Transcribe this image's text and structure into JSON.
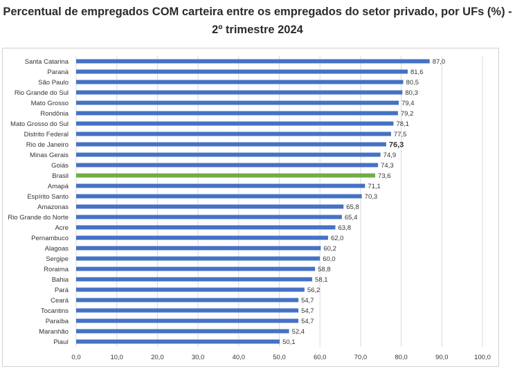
{
  "chart_data": {
    "type": "bar",
    "orientation": "horizontal",
    "title": "Percentual de empregados COM carteira entre os empregados do setor privado, por UFs (%) - 2º trimestre 2024",
    "categories": [
      "Santa Catarina",
      "Paraná",
      "São Paulo",
      "Rio Grande do Sul",
      "Mato Grosso",
      "Rondônia",
      "Mato Grosso do Sul",
      "Distrito Federal",
      "Rio de Janeiro",
      "Minas Gerais",
      "Goiás",
      "Brasil",
      "Amapá",
      "Espírito Santo",
      "Amazonas",
      "Rio Grande do Norte",
      "Acre",
      "Pernambuco",
      "Alagoas",
      "Sergipe",
      "Roraima",
      "Bahia",
      "Pará",
      "Ceará",
      "Tocantins",
      "Paraíba",
      "Maranhão",
      "Piauí"
    ],
    "values": [
      87.0,
      81.6,
      80.5,
      80.3,
      79.4,
      79.2,
      78.1,
      77.5,
      76.3,
      74.9,
      74.3,
      73.6,
      71.1,
      70.3,
      65.8,
      65.4,
      63.8,
      62.0,
      60.2,
      60.0,
      58.8,
      58.1,
      56.2,
      54.7,
      54.7,
      54.7,
      52.4,
      50.1
    ],
    "value_labels": [
      "87,0",
      "81,6",
      "80,5",
      "80,3",
      "79,4",
      "79,2",
      "78,1",
      "77,5",
      "76,3",
      "74,9",
      "74,3",
      "73,6",
      "71,1",
      "70,3",
      "65,8",
      "65,4",
      "63,8",
      "62,0",
      "60,2",
      "60,0",
      "58,8",
      "58,1",
      "56,2",
      "54,7",
      "54,7",
      "54,7",
      "52,4",
      "50,1"
    ],
    "highlight_bold_label": "Rio de Janeiro",
    "highlight_bar": "Brasil",
    "xlim": [
      0,
      100
    ],
    "xticks": [
      0,
      10,
      20,
      30,
      40,
      50,
      60,
      70,
      80,
      90,
      100
    ],
    "xtick_labels": [
      "0,0",
      "10,0",
      "20,0",
      "30,0",
      "40,0",
      "50,0",
      "60,0",
      "70,0",
      "80,0",
      "90,0",
      "100,0"
    ],
    "grid": "vertical",
    "colors": {
      "bar": "#4472C4",
      "highlight": "#70AD47",
      "grid": "#D9D9D9"
    }
  }
}
